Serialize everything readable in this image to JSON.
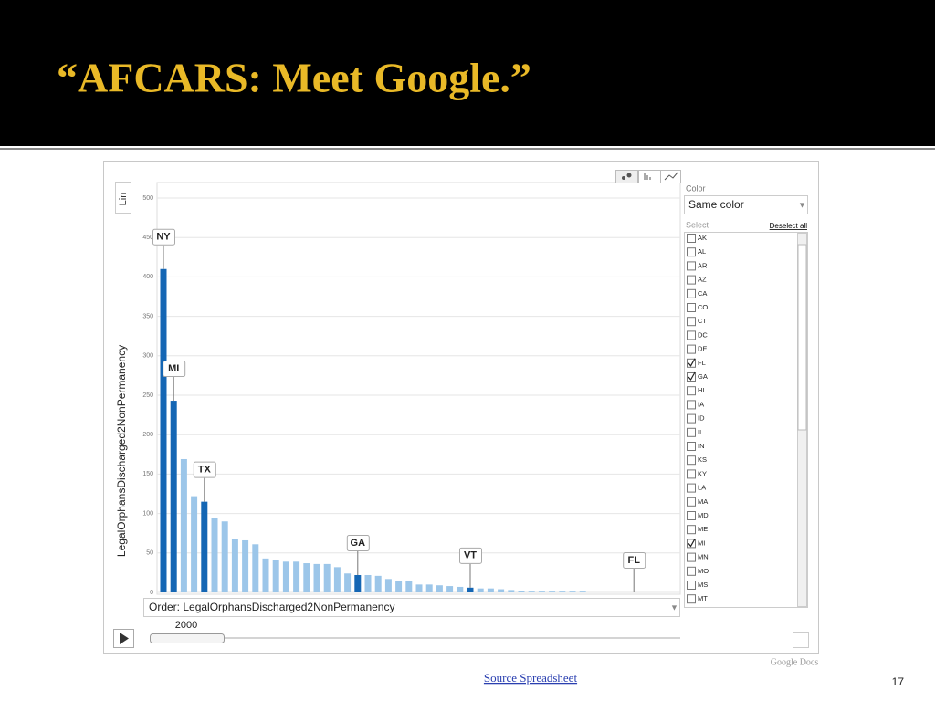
{
  "slide": {
    "title": "“AFCARS: Meet Google.”",
    "source_link": "Source Spreadsheet",
    "branding": "Google Docs",
    "page_number": "17"
  },
  "chart_data": {
    "type": "bar",
    "y_label": "LegalOrphansDischarged2NonPermanency",
    "order_label": "Order: LegalOrphansDischarged2NonPermanency",
    "year": "2000",
    "scale_toggle": "Lin",
    "categories": [
      "NY",
      "MI",
      null,
      null,
      "TX",
      null,
      null,
      null,
      null,
      null,
      null,
      null,
      null,
      null,
      null,
      null,
      null,
      null,
      null,
      "GA",
      null,
      null,
      null,
      null,
      null,
      null,
      null,
      null,
      null,
      null,
      "VT",
      null,
      null,
      null,
      null,
      null,
      null,
      null,
      null,
      null,
      null,
      null,
      null,
      null,
      null,
      null,
      "FL",
      null,
      null,
      null,
      null
    ],
    "values": [
      410,
      243,
      169,
      122,
      115,
      94,
      90,
      68,
      66,
      61,
      43,
      41,
      39,
      39,
      37,
      36,
      36,
      32,
      24,
      22,
      22,
      21,
      17,
      15,
      15,
      10,
      10,
      9,
      8,
      7,
      6,
      5,
      5,
      4,
      3,
      2,
      1,
      1,
      1,
      1,
      1,
      1,
      0,
      0,
      0,
      0,
      0,
      0,
      0,
      0,
      0
    ],
    "color": "#9cc6e9",
    "highlight_color": "#1466b4",
    "highlighted": [
      0,
      1,
      4,
      19,
      30
    ],
    "ylim": [
      0,
      500
    ],
    "yticks": [
      0,
      50,
      100,
      150,
      200,
      250,
      300,
      350,
      400,
      450,
      500
    ],
    "grid": true
  },
  "panel": {
    "color_label": "Color",
    "color_option": "Same color",
    "select_label": "Select",
    "deselect": "Deselect all",
    "states": [
      {
        "code": "AK",
        "checked": false
      },
      {
        "code": "AL",
        "checked": false
      },
      {
        "code": "AR",
        "checked": false
      },
      {
        "code": "AZ",
        "checked": false
      },
      {
        "code": "CA",
        "checked": false
      },
      {
        "code": "CO",
        "checked": false
      },
      {
        "code": "CT",
        "checked": false
      },
      {
        "code": "DC",
        "checked": false
      },
      {
        "code": "DE",
        "checked": false
      },
      {
        "code": "FL",
        "checked": true
      },
      {
        "code": "GA",
        "checked": true
      },
      {
        "code": "HI",
        "checked": false
      },
      {
        "code": "IA",
        "checked": false
      },
      {
        "code": "ID",
        "checked": false
      },
      {
        "code": "IL",
        "checked": false
      },
      {
        "code": "IN",
        "checked": false
      },
      {
        "code": "KS",
        "checked": false
      },
      {
        "code": "KY",
        "checked": false
      },
      {
        "code": "LA",
        "checked": false
      },
      {
        "code": "MA",
        "checked": false
      },
      {
        "code": "MD",
        "checked": false
      },
      {
        "code": "ME",
        "checked": false
      },
      {
        "code": "MI",
        "checked": true
      },
      {
        "code": "MN",
        "checked": false
      },
      {
        "code": "MO",
        "checked": false
      },
      {
        "code": "MS",
        "checked": false
      },
      {
        "code": "MT",
        "checked": false
      }
    ]
  }
}
